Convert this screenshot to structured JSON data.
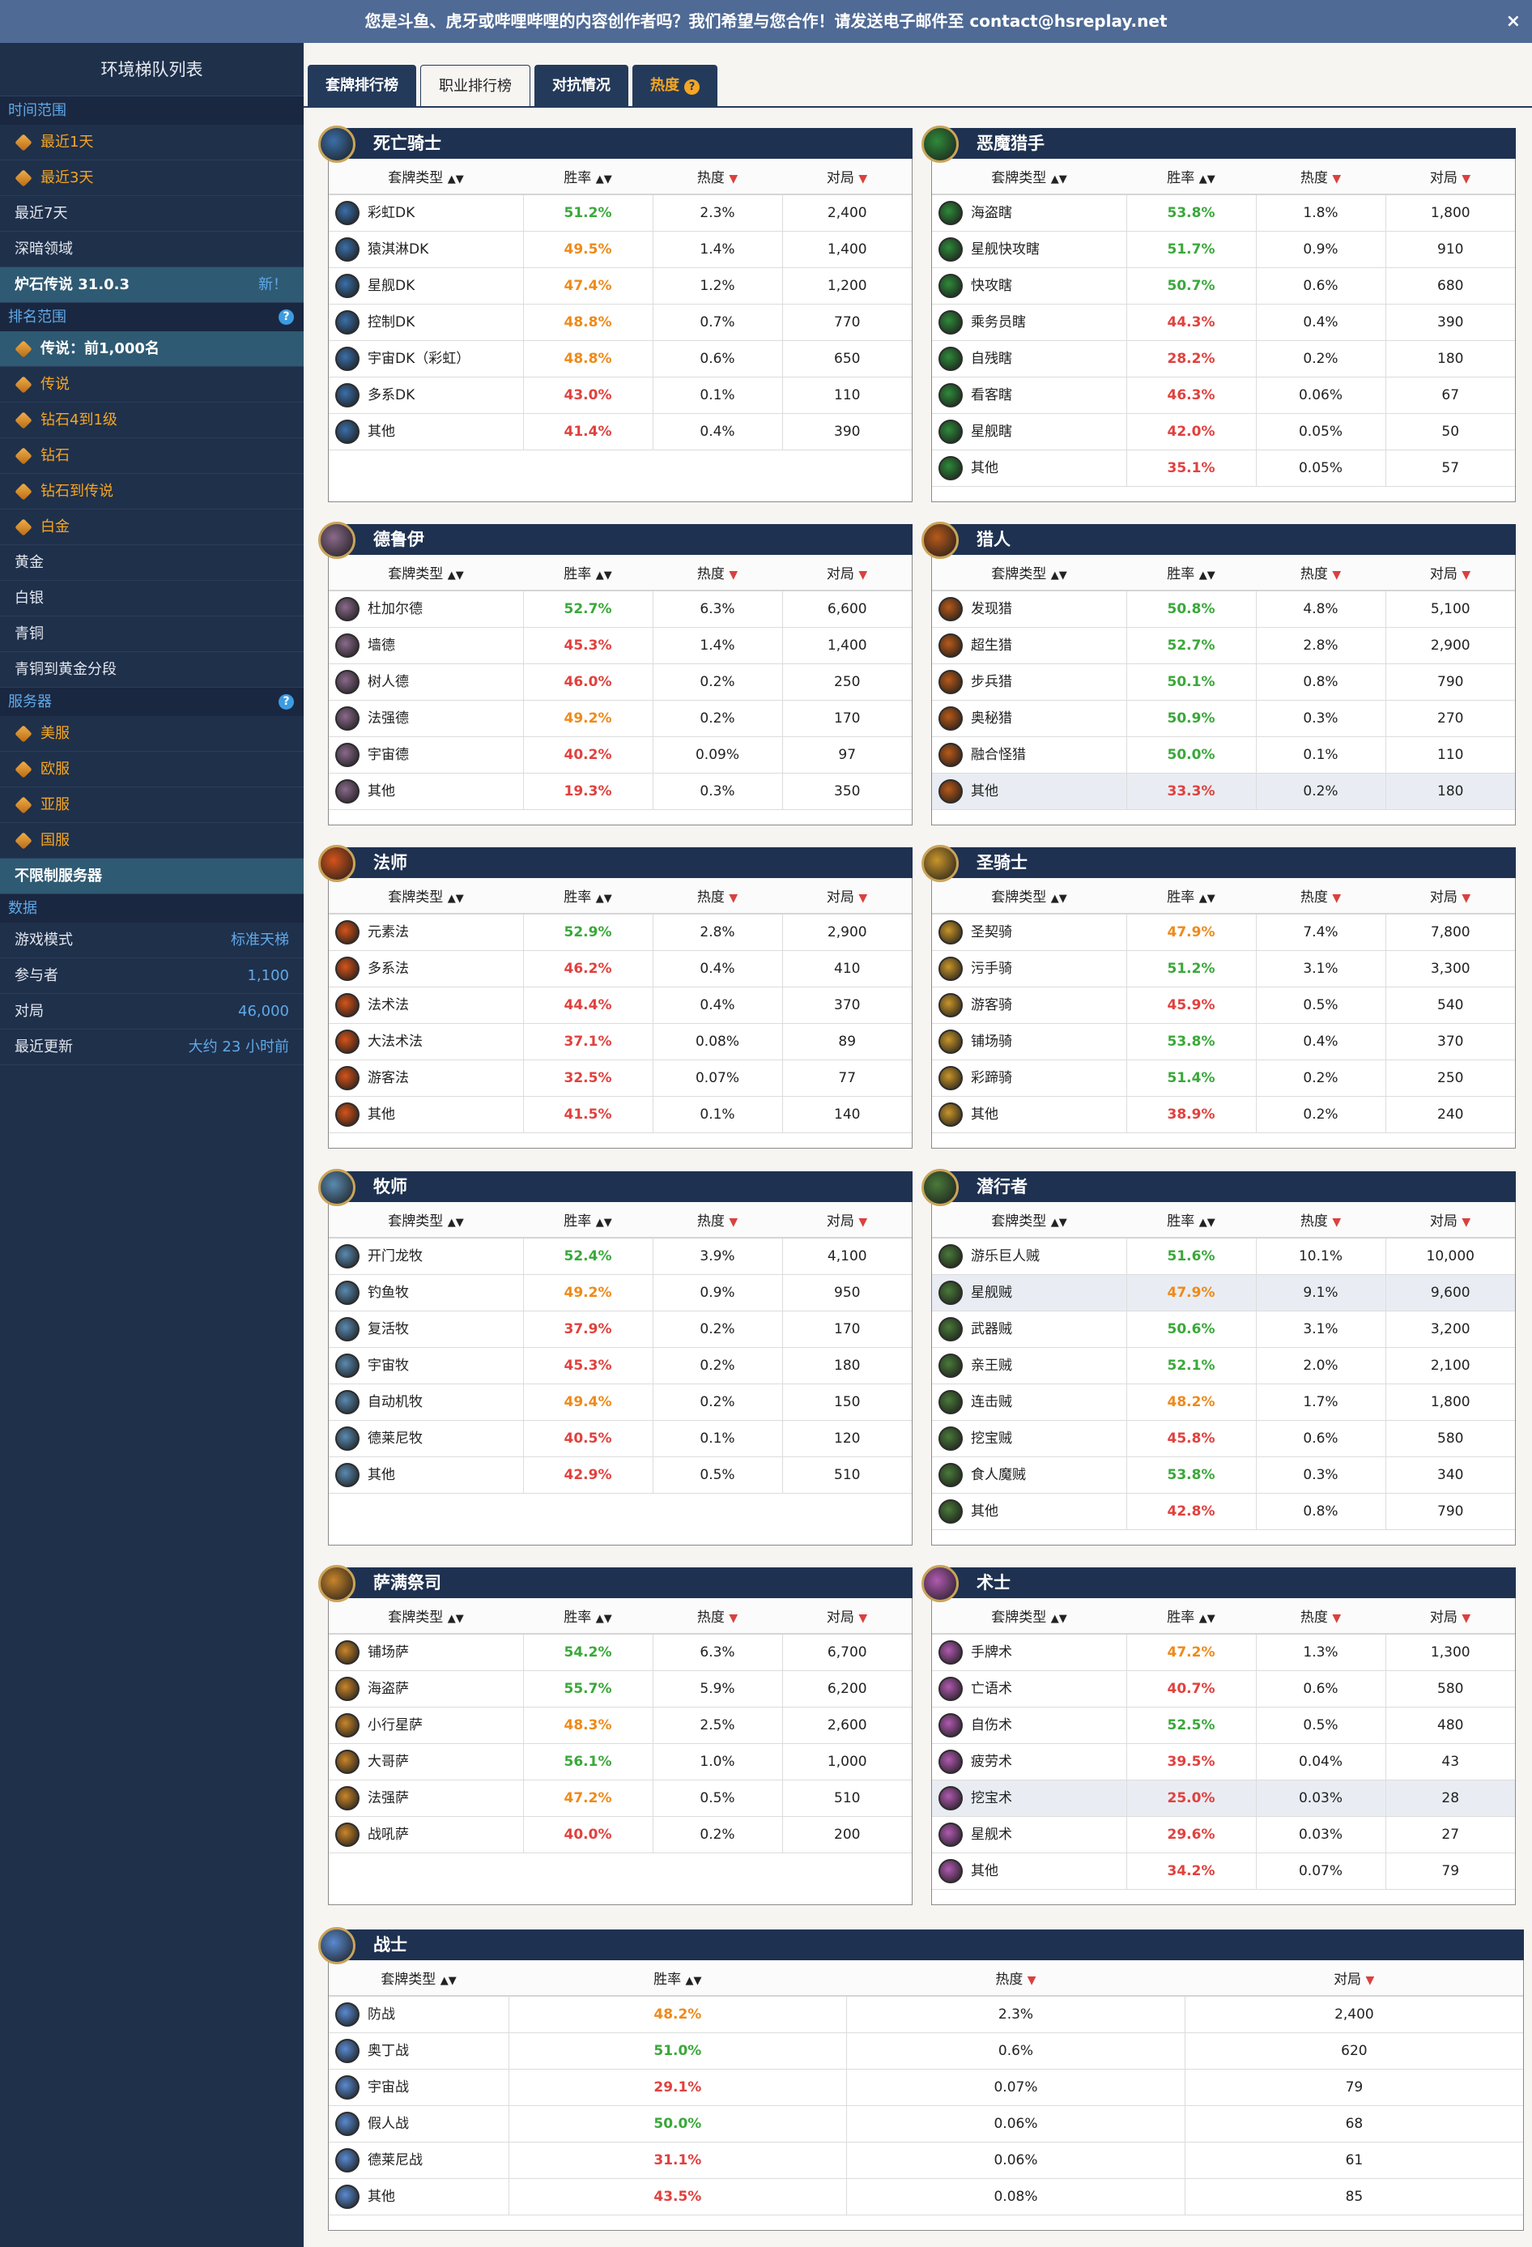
{
  "banner": {
    "text": "您是斗鱼、虎牙或哔哩哔哩的内容创作者吗？我们希望与您合作！请发送电子邮件至 contact@hsreplay.net",
    "close": "×"
  },
  "sidebar": {
    "title": "环境梯队列表",
    "time_section": "时间范围",
    "time_items": [
      {
        "label": "最近1天",
        "locked": true
      },
      {
        "label": "最近3天",
        "locked": true
      },
      {
        "label": "最近7天",
        "locked": false
      },
      {
        "label": "深暗领域",
        "locked": false
      }
    ],
    "version": {
      "label": "炉石传说 31.0.3",
      "new": "新！"
    },
    "rank_section": "排名范围",
    "rank_items": [
      {
        "label": "传说：前1,000名",
        "locked": true,
        "selected": true
      },
      {
        "label": "传说",
        "locked": true
      },
      {
        "label": "钻石4到1级",
        "locked": true
      },
      {
        "label": "钻石",
        "locked": true
      },
      {
        "label": "钻石到传说",
        "locked": true
      },
      {
        "label": "白金",
        "locked": true
      },
      {
        "label": "黄金",
        "locked": false
      },
      {
        "label": "白银",
        "locked": false
      },
      {
        "label": "青铜",
        "locked": false
      },
      {
        "label": "青铜到黄金分段",
        "locked": false
      }
    ],
    "server_section": "服务器",
    "server_items": [
      {
        "label": "美服",
        "locked": true
      },
      {
        "label": "欧服",
        "locked": true
      },
      {
        "label": "亚服",
        "locked": true
      },
      {
        "label": "国服",
        "locked": true
      }
    ],
    "server_all": "不限制服务器",
    "data_section": "数据",
    "data_items": [
      {
        "label": "游戏模式",
        "value": "标准天梯"
      },
      {
        "label": "参与者",
        "value": "1,100"
      },
      {
        "label": "对局",
        "value": "46,000"
      },
      {
        "label": "最近更新",
        "value": "大约 23 小时前"
      }
    ]
  },
  "tabs": [
    {
      "label": "套牌排行榜"
    },
    {
      "label": "职业排行榜"
    },
    {
      "label": "对抗情况"
    },
    {
      "label": "热度",
      "badge": "?"
    }
  ],
  "headers": {
    "deck": "套牌类型",
    "wr": "胜率",
    "pop": "热度",
    "games": "对局",
    "sort": "▲▼",
    "down": "▼"
  },
  "colors": {
    "green": "#3aa83a",
    "orange": "#ee8a1a",
    "red": "#e0413e"
  },
  "classes": [
    {
      "name": "死亡骑士",
      "icon": "death-knight-icon",
      "color": "#3b6fa8",
      "rows": [
        [
          "彩虹DK",
          "51.2%",
          "2.3%",
          "2,400"
        ],
        [
          "猿淇淋DK",
          "49.5%",
          "1.4%",
          "1,400"
        ],
        [
          "星舰DK",
          "47.4%",
          "1.2%",
          "1,200"
        ],
        [
          "控制DK",
          "48.8%",
          "0.7%",
          "770"
        ],
        [
          "宇宙DK（彩虹）",
          "48.8%",
          "0.6%",
          "650"
        ],
        [
          "多系DK",
          "43.0%",
          "0.1%",
          "110"
        ],
        [
          "其他",
          "41.4%",
          "0.4%",
          "390"
        ]
      ]
    },
    {
      "name": "恶魔猎手",
      "icon": "demon-hunter-icon",
      "color": "#2f8a3a",
      "rows": [
        [
          "海盗瞎",
          "53.8%",
          "1.8%",
          "1,800"
        ],
        [
          "星舰快攻瞎",
          "51.7%",
          "0.9%",
          "910"
        ],
        [
          "快攻瞎",
          "50.7%",
          "0.6%",
          "680"
        ],
        [
          "乘务员瞎",
          "44.3%",
          "0.4%",
          "390"
        ],
        [
          "自残瞎",
          "28.2%",
          "0.2%",
          "180"
        ],
        [
          "看客瞎",
          "46.3%",
          "0.06%",
          "67"
        ],
        [
          "星舰瞎",
          "42.0%",
          "0.05%",
          "50"
        ],
        [
          "其他",
          "35.1%",
          "0.05%",
          "57"
        ]
      ]
    },
    {
      "name": "德鲁伊",
      "icon": "druid-icon",
      "color": "#8a6a8a",
      "rows": [
        [
          "杜加尔德",
          "52.7%",
          "6.3%",
          "6,600"
        ],
        [
          "墙德",
          "45.3%",
          "1.4%",
          "1,400"
        ],
        [
          "树人德",
          "46.0%",
          "0.2%",
          "250"
        ],
        [
          "法强德",
          "49.2%",
          "0.2%",
          "170"
        ],
        [
          "宇宙德",
          "40.2%",
          "0.09%",
          "97"
        ],
        [
          "其他",
          "19.3%",
          "0.3%",
          "350"
        ]
      ]
    },
    {
      "name": "猎人",
      "icon": "hunter-icon",
      "color": "#b85a1a",
      "rows": [
        [
          "发现猎",
          "50.8%",
          "4.8%",
          "5,100"
        ],
        [
          "超生猎",
          "52.7%",
          "2.8%",
          "2,900"
        ],
        [
          "步兵猎",
          "50.1%",
          "0.8%",
          "790"
        ],
        [
          "奥秘猎",
          "50.9%",
          "0.3%",
          "270"
        ],
        [
          "融合怪猎",
          "50.0%",
          "0.1%",
          "110"
        ],
        [
          "其他",
          "33.3%",
          "0.2%",
          "180"
        ]
      ]
    },
    {
      "name": "法师",
      "icon": "mage-icon",
      "color": "#d4541a",
      "rows": [
        [
          "元素法",
          "52.9%",
          "2.8%",
          "2,900"
        ],
        [
          "多系法",
          "46.2%",
          "0.4%",
          "410"
        ],
        [
          "法术法",
          "44.4%",
          "0.4%",
          "370"
        ],
        [
          "大法术法",
          "37.1%",
          "0.08%",
          "89"
        ],
        [
          "游客法",
          "32.5%",
          "0.07%",
          "77"
        ],
        [
          "其他",
          "41.5%",
          "0.1%",
          "140"
        ]
      ]
    },
    {
      "name": "圣骑士",
      "icon": "paladin-icon",
      "color": "#c9952a",
      "rows": [
        [
          "圣契骑",
          "47.9%",
          "7.4%",
          "7,800"
        ],
        [
          "污手骑",
          "51.2%",
          "3.1%",
          "3,300"
        ],
        [
          "游客骑",
          "45.9%",
          "0.5%",
          "540"
        ],
        [
          "铺场骑",
          "53.8%",
          "0.4%",
          "370"
        ],
        [
          "彩蹄骑",
          "51.4%",
          "0.2%",
          "250"
        ],
        [
          "其他",
          "38.9%",
          "0.2%",
          "240"
        ]
      ]
    },
    {
      "name": "牧师",
      "icon": "priest-icon",
      "color": "#5a8ab0",
      "rows": [
        [
          "开门龙牧",
          "52.4%",
          "3.9%",
          "4,100"
        ],
        [
          "钓鱼牧",
          "49.2%",
          "0.9%",
          "950"
        ],
        [
          "复活牧",
          "37.9%",
          "0.2%",
          "170"
        ],
        [
          "宇宙牧",
          "45.3%",
          "0.2%",
          "180"
        ],
        [
          "自动机牧",
          "49.4%",
          "0.2%",
          "150"
        ],
        [
          "德莱尼牧",
          "40.5%",
          "0.1%",
          "120"
        ],
        [
          "其他",
          "42.9%",
          "0.5%",
          "510"
        ]
      ]
    },
    {
      "name": "潜行者",
      "icon": "rogue-icon",
      "color": "#4a7a3a",
      "rows": [
        [
          "游乐巨人贼",
          "51.6%",
          "10.1%",
          "10,000"
        ],
        [
          "星舰贼",
          "47.9%",
          "9.1%",
          "9,600"
        ],
        [
          "武器贼",
          "50.6%",
          "3.1%",
          "3,200"
        ],
        [
          "亲王贼",
          "52.1%",
          "2.0%",
          "2,100"
        ],
        [
          "连击贼",
          "48.2%",
          "1.7%",
          "1,800"
        ],
        [
          "挖宝贼",
          "45.8%",
          "0.6%",
          "580"
        ],
        [
          "食人魔贼",
          "53.8%",
          "0.3%",
          "340"
        ],
        [
          "其他",
          "42.8%",
          "0.8%",
          "790"
        ]
      ]
    },
    {
      "name": "萨满祭司",
      "icon": "shaman-icon",
      "color": "#c9852a",
      "rows": [
        [
          "铺场萨",
          "54.2%",
          "6.3%",
          "6,700"
        ],
        [
          "海盗萨",
          "55.7%",
          "5.9%",
          "6,200"
        ],
        [
          "小行星萨",
          "48.3%",
          "2.5%",
          "2,600"
        ],
        [
          "大哥萨",
          "56.1%",
          "1.0%",
          "1,000"
        ],
        [
          "法强萨",
          "47.2%",
          "0.5%",
          "510"
        ],
        [
          "战吼萨",
          "40.0%",
          "0.2%",
          "200"
        ]
      ]
    },
    {
      "name": "术士",
      "icon": "warlock-icon",
      "color": "#b05ab0",
      "rows": [
        [
          "手牌术",
          "47.2%",
          "1.3%",
          "1,300"
        ],
        [
          "亡语术",
          "40.7%",
          "0.6%",
          "580"
        ],
        [
          "自伤术",
          "52.5%",
          "0.5%",
          "480"
        ],
        [
          "疲劳术",
          "39.5%",
          "0.04%",
          "43"
        ],
        [
          "挖宝术",
          "25.0%",
          "0.03%",
          "28"
        ],
        [
          "星舰术",
          "29.6%",
          "0.03%",
          "27"
        ],
        [
          "其他",
          "34.2%",
          "0.07%",
          "79"
        ]
      ]
    },
    {
      "name": "战士",
      "icon": "warrior-icon",
      "color": "#5a8ad0",
      "rows": [
        [
          "防战",
          "48.2%",
          "2.3%",
          "2,400"
        ],
        [
          "奥丁战",
          "51.0%",
          "0.6%",
          "620"
        ],
        [
          "宇宙战",
          "29.1%",
          "0.07%",
          "79"
        ],
        [
          "假人战",
          "50.0%",
          "0.06%",
          "68"
        ],
        [
          "德莱尼战",
          "31.1%",
          "0.06%",
          "61"
        ],
        [
          "其他",
          "43.5%",
          "0.08%",
          "85"
        ]
      ]
    }
  ]
}
